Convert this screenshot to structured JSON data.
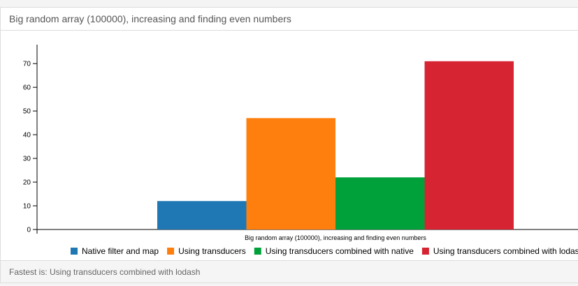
{
  "panel": {
    "title": "Big random array (100000), increasing and finding even numbers",
    "footer": "Fastest is: Using transducers combined with lodash"
  },
  "chart_data": {
    "type": "bar",
    "categories": [
      "Big random array (100000), increasing and finding even numbers"
    ],
    "series": [
      {
        "name": "Native filter and map",
        "values": [
          12
        ],
        "color": "#1f77b4"
      },
      {
        "name": "Using transducers",
        "values": [
          47
        ],
        "color": "#ff7f0e"
      },
      {
        "name": "Using transducers combined with native",
        "values": [
          22
        ],
        "color": "#00a13a"
      },
      {
        "name": "Using transducers combined with lodash",
        "values": [
          71
        ],
        "color": "#d62433"
      }
    ],
    "yticks": [
      0,
      10,
      20,
      30,
      40,
      50,
      60,
      70
    ],
    "ylim": [
      0,
      78
    ],
    "legend_position": "bottom",
    "grid": false
  }
}
